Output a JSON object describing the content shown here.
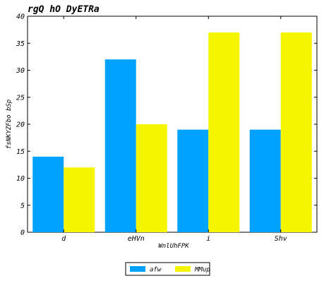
{
  "chart_data": {
    "type": "bar",
    "title": "rgQ hO DyETRa",
    "xlabel": "WnlUhFPK",
    "ylabel": "fsNKYZFbo  bSp",
    "categories": [
      "d",
      "eHVn",
      "i",
      "Shv"
    ],
    "series": [
      {
        "name": "afw",
        "values": [
          14,
          32,
          19,
          19
        ],
        "color": "#00a2ff"
      },
      {
        "name": "MMup",
        "values": [
          12,
          20,
          37,
          37
        ],
        "color": "#f5f500"
      }
    ],
    "ylim": [
      0,
      40
    ],
    "yticks": [
      0,
      5,
      10,
      15,
      20,
      25,
      30,
      35,
      40
    ],
    "grid": false,
    "legend_position": "bottom-center"
  }
}
